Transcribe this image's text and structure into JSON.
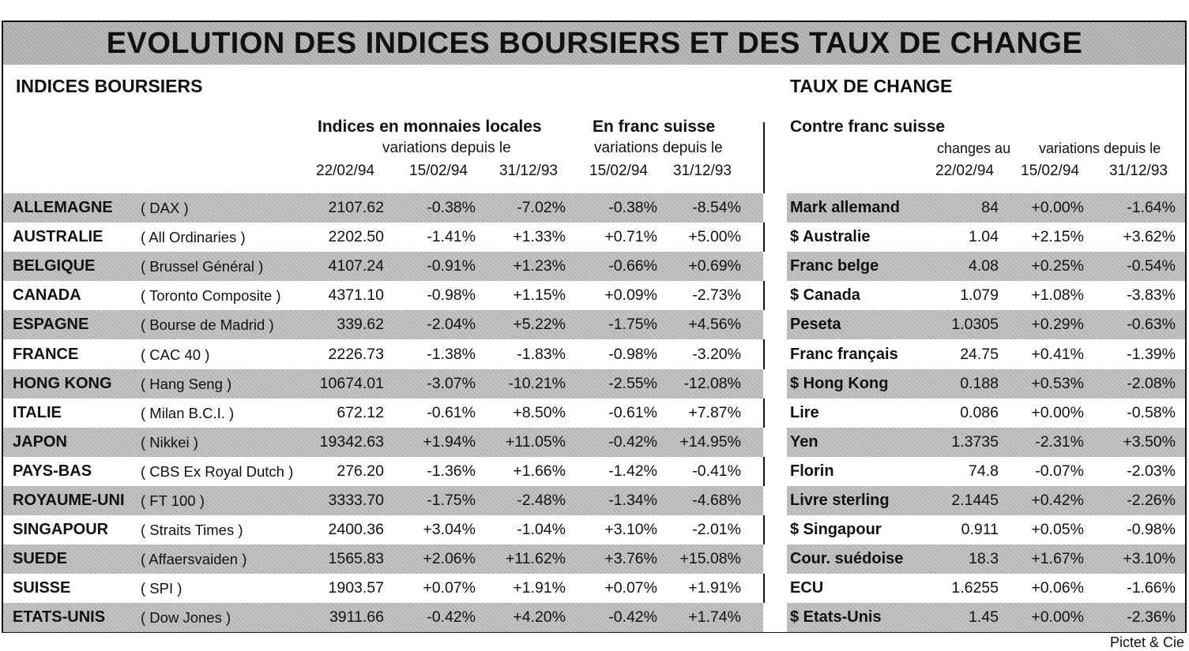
{
  "title": "EVOLUTION DES INDICES BOURSIERS ET DES TAUX DE CHANGE",
  "left": {
    "section": "INDICES BOURSIERS",
    "group1": {
      "title": "Indices en monnaies locales",
      "sub": "variations depuis le"
    },
    "group2": {
      "title": "En franc suisse",
      "sub": "variations depuis le"
    },
    "dates": [
      "22/02/94",
      "15/02/94",
      "31/12/93",
      "15/02/94",
      "31/12/93"
    ]
  },
  "right": {
    "section": "TAUX DE CHANGE",
    "group": {
      "title": "Contre  franc suisse",
      "changes": "changes au",
      "sub": "variations depuis le"
    },
    "dates": [
      "22/02/94",
      "15/02/94",
      "31/12/93"
    ]
  },
  "rows": [
    {
      "country": "ALLEMAGNE",
      "index": "( DAX )",
      "v": [
        "2107.62",
        "-0.38%",
        "-7.02%",
        "-0.38%",
        "-8.54%"
      ],
      "currency": "Mark allemand",
      "fx": [
        "84",
        "+0.00%",
        "-1.64%"
      ]
    },
    {
      "country": "AUSTRALIE",
      "index": "( All Ordinaries )",
      "v": [
        "2202.50",
        "-1.41%",
        "+1.33%",
        "+0.71%",
        "+5.00%"
      ],
      "currency": "$ Australie",
      "fx": [
        "1.04",
        "+2.15%",
        "+3.62%"
      ]
    },
    {
      "country": "BELGIQUE",
      "index": "( Brussel Général )",
      "v": [
        "4107.24",
        "-0.91%",
        "+1.23%",
        "-0.66%",
        "+0.69%"
      ],
      "currency": "Franc belge",
      "fx": [
        "4.08",
        "+0.25%",
        "-0.54%"
      ]
    },
    {
      "country": "CANADA",
      "index": "( Toronto Composite )",
      "v": [
        "4371.10",
        "-0.98%",
        "+1.15%",
        "+0.09%",
        "-2.73%"
      ],
      "currency": "$ Canada",
      "fx": [
        "1.079",
        "+1.08%",
        "-3.83%"
      ]
    },
    {
      "country": "ESPAGNE",
      "index": "( Bourse de Madrid )",
      "v": [
        "339.62",
        "-2.04%",
        "+5.22%",
        "-1.75%",
        "+4.56%"
      ],
      "currency": "Peseta",
      "fx": [
        "1.0305",
        "+0.29%",
        "-0.63%"
      ]
    },
    {
      "country": "FRANCE",
      "index": "( CAC 40 )",
      "v": [
        "2226.73",
        "-1.38%",
        "-1.83%",
        "-0.98%",
        "-3.20%"
      ],
      "currency": "Franc français",
      "fx": [
        "24.75",
        "+0.41%",
        "-1.39%"
      ]
    },
    {
      "country": "HONG KONG",
      "index": "( Hang Seng )",
      "v": [
        "10674.01",
        "-3.07%",
        "-10.21%",
        "-2.55%",
        "-12.08%"
      ],
      "currency": "$ Hong Kong",
      "fx": [
        "0.188",
        "+0.53%",
        "-2.08%"
      ]
    },
    {
      "country": "ITALIE",
      "index": "( Milan B.C.I. )",
      "v": [
        "672.12",
        "-0.61%",
        "+8.50%",
        "-0.61%",
        "+7.87%"
      ],
      "currency": "Lire",
      "fx": [
        "0.086",
        "+0.00%",
        "-0.58%"
      ]
    },
    {
      "country": "JAPON",
      "index": "( Nikkei )",
      "v": [
        "19342.63",
        "+1.94%",
        "+11.05%",
        "-0.42%",
        "+14.95%"
      ],
      "currency": "Yen",
      "fx": [
        "1.3735",
        "-2.31%",
        "+3.50%"
      ]
    },
    {
      "country": "PAYS-BAS",
      "index": "( CBS Ex Royal Dutch )",
      "v": [
        "276.20",
        "-1.36%",
        "+1.66%",
        "-1.42%",
        "-0.41%"
      ],
      "currency": "Florin",
      "fx": [
        "74.8",
        "-0.07%",
        "-2.03%"
      ]
    },
    {
      "country": "ROYAUME-UNI",
      "index": "( FT 100 )",
      "v": [
        "3333.70",
        "-1.75%",
        "-2.48%",
        "-1.34%",
        "-4.68%"
      ],
      "currency": "Livre sterling",
      "fx": [
        "2.1445",
        "+0.42%",
        "-2.26%"
      ]
    },
    {
      "country": "SINGAPOUR",
      "index": "( Straits Times )",
      "v": [
        "2400.36",
        "+3.04%",
        "-1.04%",
        "+3.10%",
        "-2.01%"
      ],
      "currency": "$ Singapour",
      "fx": [
        "0.911",
        "+0.05%",
        "-0.98%"
      ]
    },
    {
      "country": "SUEDE",
      "index": "( Affaersvaiden )",
      "v": [
        "1565.83",
        "+2.06%",
        "+11.62%",
        "+3.76%",
        "+15.08%"
      ],
      "currency": "Cour. suédoise",
      "fx": [
        "18.3",
        "+1.67%",
        "+3.10%"
      ]
    },
    {
      "country": "SUISSE",
      "index": "( SPI )",
      "v": [
        "1903.57",
        "+0.07%",
        "+1.91%",
        "+0.07%",
        "+1.91%"
      ],
      "currency": "ECU",
      "fx": [
        "1.6255",
        "+0.06%",
        "-1.66%"
      ]
    },
    {
      "country": "ETATS-UNIS",
      "index": "( Dow Jones )",
      "v": [
        "3911.66",
        "-0.42%",
        "+4.20%",
        "-0.42%",
        "+1.74%"
      ],
      "currency": "$ Etats-Unis",
      "fx": [
        "1.45",
        "+0.00%",
        "-2.36%"
      ]
    }
  ],
  "credit": "Pictet & Cie"
}
